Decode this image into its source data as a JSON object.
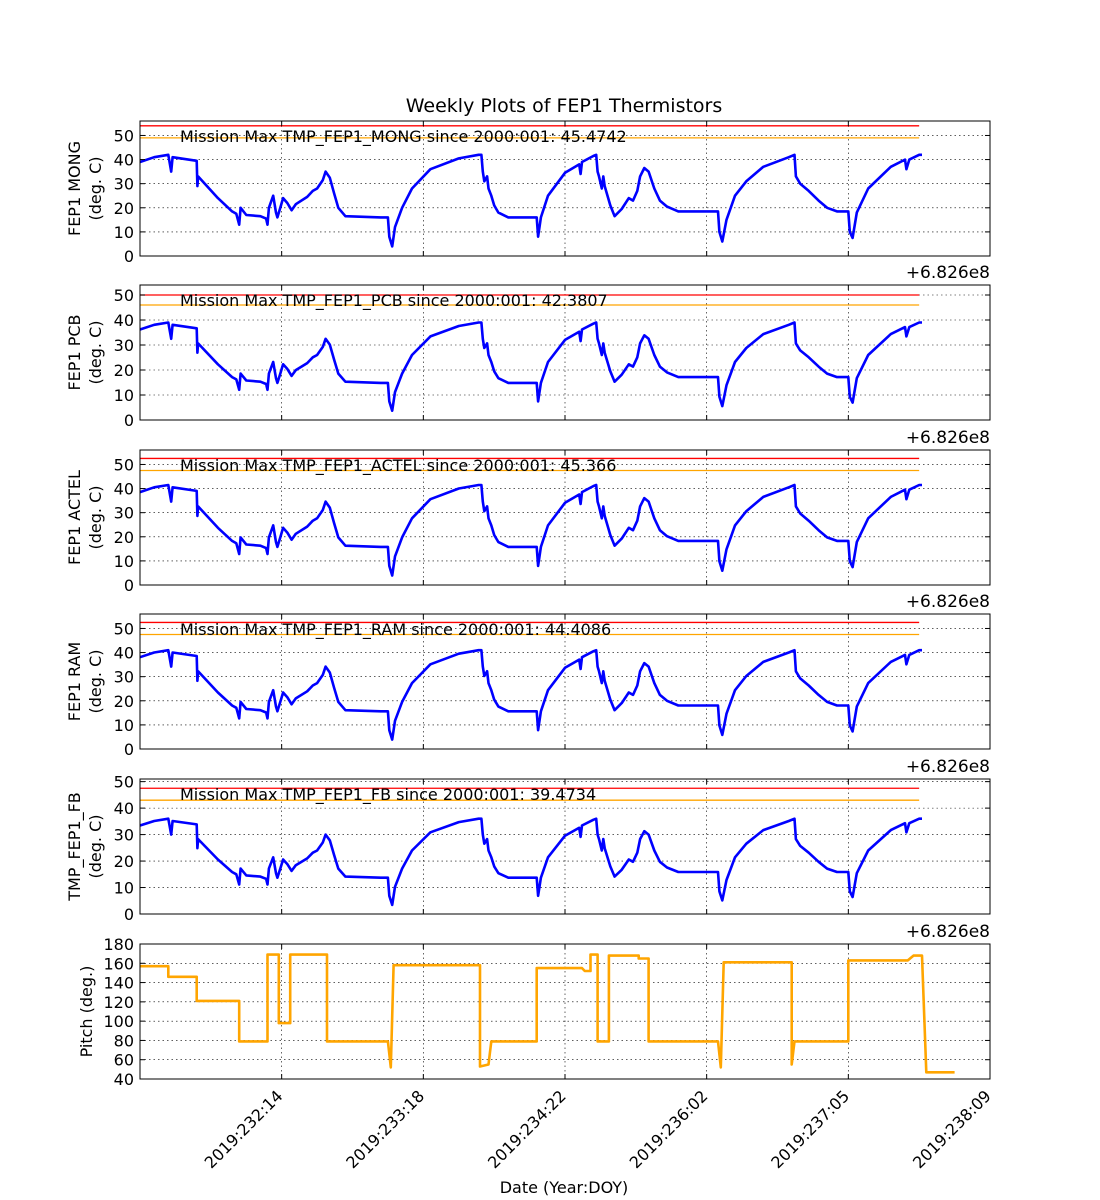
{
  "chart_data": {
    "title": "Weekly Plots of FEP1 Thermistors",
    "xlabel": "Date (Year:DOY)",
    "x_offset_label": "+6.826e8",
    "xlim": [
      0,
      600
    ],
    "x_ticks": [
      {
        "pos": 100,
        "label": "2019:232:14"
      },
      {
        "pos": 200,
        "label": "2019:233:18"
      },
      {
        "pos": 300,
        "label": "2019:234:22"
      },
      {
        "pos": 400,
        "label": "2019:236:02"
      },
      {
        "pos": 500,
        "label": "2019:237:05"
      },
      {
        "pos": 600,
        "label": "2019:238:09"
      }
    ],
    "panels": [
      {
        "type": "line",
        "ylabel": [
          "FEP1 MONG",
          "(deg. C)"
        ],
        "ylim": [
          0,
          56
        ],
        "yticks": [
          0,
          10,
          20,
          30,
          40,
          50
        ],
        "annotation": "Mission Max TMP_FEP1_MONG since 2000:001: 45.4742",
        "limit_lines": [
          {
            "value": 54,
            "color": "#ff0000"
          },
          {
            "value": 49,
            "color": "#ffa500"
          }
        ],
        "series_color": "#0000ff",
        "offset": 0,
        "show_offset": false
      },
      {
        "type": "line",
        "ylabel": [
          "FEP1 PCB",
          "(deg. C)"
        ],
        "ylim": [
          0,
          54
        ],
        "yticks": [
          0,
          10,
          20,
          30,
          40,
          50
        ],
        "annotation": "Mission Max TMP_FEP1_PCB since 2000:001: 42.3807",
        "limit_lines": [
          {
            "value": 50,
            "color": "#ff0000"
          },
          {
            "value": 46,
            "color": "#ffa500"
          }
        ],
        "series_color": "#0000ff",
        "offset": -3,
        "show_offset": true
      },
      {
        "type": "line",
        "ylabel": [
          "FEP1 ACTEL",
          "(deg. C)"
        ],
        "ylim": [
          0,
          56
        ],
        "yticks": [
          0,
          10,
          20,
          30,
          40,
          50
        ],
        "annotation": "Mission Max TMP_FEP1_ACTEL since 2000:001: 45.366",
        "limit_lines": [
          {
            "value": 52.5,
            "color": "#ff0000"
          },
          {
            "value": 47.5,
            "color": "#ffa500"
          }
        ],
        "series_color": "#0000ff",
        "offset": -0.5,
        "show_offset": true
      },
      {
        "type": "line",
        "ylabel": [
          "FEP1 RAM",
          "(deg. C)"
        ],
        "ylim": [
          0,
          56
        ],
        "yticks": [
          0,
          10,
          20,
          30,
          40,
          50
        ],
        "annotation": "Mission Max TMP_FEP1_RAM since 2000:001: 44.4086",
        "limit_lines": [
          {
            "value": 52.5,
            "color": "#ff0000"
          },
          {
            "value": 47.5,
            "color": "#ffa500"
          }
        ],
        "series_color": "#0000ff",
        "offset": -1,
        "show_offset": true
      },
      {
        "type": "line",
        "ylabel": [
          "TMP_FEP1_FB",
          "(deg. C)"
        ],
        "ylim": [
          0,
          51
        ],
        "yticks": [
          0,
          10,
          20,
          30,
          40,
          50
        ],
        "annotation": "Mission Max TMP_FEP1_FB since 2000:001: 39.4734",
        "limit_lines": [
          {
            "value": 47.5,
            "color": "#ff0000"
          },
          {
            "value": 43,
            "color": "#ffa500"
          }
        ],
        "series_color": "#0000ff",
        "offset": -6,
        "show_offset": true
      },
      {
        "type": "step",
        "ylabel": [
          "Pitch (deg.)"
        ],
        "ylim": [
          40,
          180
        ],
        "yticks": [
          40,
          60,
          80,
          100,
          120,
          140,
          160,
          180
        ],
        "series_color": "#ffa500",
        "show_offset": true,
        "show_xticklabels": true,
        "points": [
          [
            0,
            157
          ],
          [
            20,
            157
          ],
          [
            20,
            146
          ],
          [
            40,
            146
          ],
          [
            40,
            121
          ],
          [
            70,
            121
          ],
          [
            70,
            79
          ],
          [
            90,
            79
          ],
          [
            90,
            169
          ],
          [
            98,
            169
          ],
          [
            98,
            98
          ],
          [
            106,
            98
          ],
          [
            106,
            169
          ],
          [
            132,
            169
          ],
          [
            132,
            79
          ],
          [
            175,
            79
          ],
          [
            177,
            52
          ],
          [
            179,
            158
          ],
          [
            240,
            158
          ],
          [
            240,
            53
          ],
          [
            246,
            55
          ],
          [
            248,
            79
          ],
          [
            280,
            79
          ],
          [
            280,
            155
          ],
          [
            312,
            155
          ],
          [
            314,
            152
          ],
          [
            318,
            152
          ],
          [
            318,
            169
          ],
          [
            323,
            169
          ],
          [
            323,
            79
          ],
          [
            331,
            79
          ],
          [
            331,
            168
          ],
          [
            352,
            168
          ],
          [
            352,
            165
          ],
          [
            359,
            165
          ],
          [
            359,
            79
          ],
          [
            408,
            79
          ],
          [
            410,
            52
          ],
          [
            412,
            161
          ],
          [
            460,
            161
          ],
          [
            460,
            55
          ],
          [
            462,
            79
          ],
          [
            500,
            79
          ],
          [
            500,
            163
          ],
          [
            542,
            163
          ],
          [
            546,
            168
          ],
          [
            552,
            168
          ],
          [
            555,
            47
          ],
          [
            575,
            47
          ]
        ]
      }
    ],
    "temperature_points": [
      [
        0,
        39
      ],
      [
        10,
        41
      ],
      [
        20,
        42
      ],
      [
        22,
        35
      ],
      [
        23,
        41
      ],
      [
        40,
        39.5
      ],
      [
        40.5,
        29
      ],
      [
        41,
        33
      ],
      [
        55,
        24
      ],
      [
        65,
        18.5
      ],
      [
        68,
        17.5
      ],
      [
        70,
        13
      ],
      [
        71,
        20
      ],
      [
        75,
        17
      ],
      [
        85,
        16.5
      ],
      [
        89,
        15.5
      ],
      [
        90,
        13
      ],
      [
        91,
        20
      ],
      [
        94,
        25
      ],
      [
        96,
        18
      ],
      [
        97,
        16
      ],
      [
        99,
        20
      ],
      [
        101,
        24
      ],
      [
        104,
        22
      ],
      [
        107,
        19
      ],
      [
        110,
        21.5
      ],
      [
        118,
        24.5
      ],
      [
        122,
        27
      ],
      [
        125,
        28
      ],
      [
        129,
        31.5
      ],
      [
        131,
        35
      ],
      [
        134,
        32.5
      ],
      [
        137,
        26
      ],
      [
        140,
        20
      ],
      [
        145,
        16.5
      ],
      [
        170,
        16
      ],
      [
        175,
        16
      ],
      [
        176,
        8
      ],
      [
        178,
        4
      ],
      [
        180,
        12
      ],
      [
        185,
        20
      ],
      [
        192,
        28
      ],
      [
        205,
        36
      ],
      [
        225,
        40.5
      ],
      [
        239,
        42
      ],
      [
        241,
        42
      ],
      [
        242,
        35
      ],
      [
        243,
        31
      ],
      [
        245,
        33
      ],
      [
        246,
        28
      ],
      [
        248,
        25
      ],
      [
        250,
        21
      ],
      [
        253,
        18
      ],
      [
        260,
        16
      ],
      [
        280,
        16
      ],
      [
        281,
        8
      ],
      [
        283,
        16
      ],
      [
        288,
        25
      ],
      [
        300,
        34.5
      ],
      [
        310,
        38
      ],
      [
        311,
        34
      ],
      [
        312,
        39
      ],
      [
        320,
        41.5
      ],
      [
        322,
        42
      ],
      [
        323,
        35
      ],
      [
        324,
        33
      ],
      [
        326,
        28
      ],
      [
        327,
        33
      ],
      [
        328,
        29
      ],
      [
        332,
        21
      ],
      [
        335,
        16.5
      ],
      [
        340,
        19.5
      ],
      [
        345,
        24
      ],
      [
        348,
        23
      ],
      [
        351,
        27
      ],
      [
        353,
        33
      ],
      [
        356,
        36.5
      ],
      [
        359,
        35
      ],
      [
        363,
        28
      ],
      [
        367,
        23
      ],
      [
        372,
        20.5
      ],
      [
        380,
        18.5
      ],
      [
        408,
        18.5
      ],
      [
        409,
        10
      ],
      [
        411,
        6
      ],
      [
        414,
        15
      ],
      [
        420,
        25
      ],
      [
        428,
        31
      ],
      [
        440,
        37
      ],
      [
        458,
        41
      ],
      [
        462,
        42
      ],
      [
        463,
        33
      ],
      [
        466,
        30
      ],
      [
        472,
        27
      ],
      [
        479,
        23
      ],
      [
        485,
        20
      ],
      [
        492,
        18.5
      ],
      [
        500,
        18.5
      ],
      [
        501,
        10
      ],
      [
        503,
        7.5
      ],
      [
        506,
        18
      ],
      [
        514,
        28
      ],
      [
        530,
        37
      ],
      [
        540,
        40
      ],
      [
        541,
        36
      ],
      [
        543,
        40
      ],
      [
        550,
        42
      ],
      [
        552,
        42
      ]
    ]
  }
}
